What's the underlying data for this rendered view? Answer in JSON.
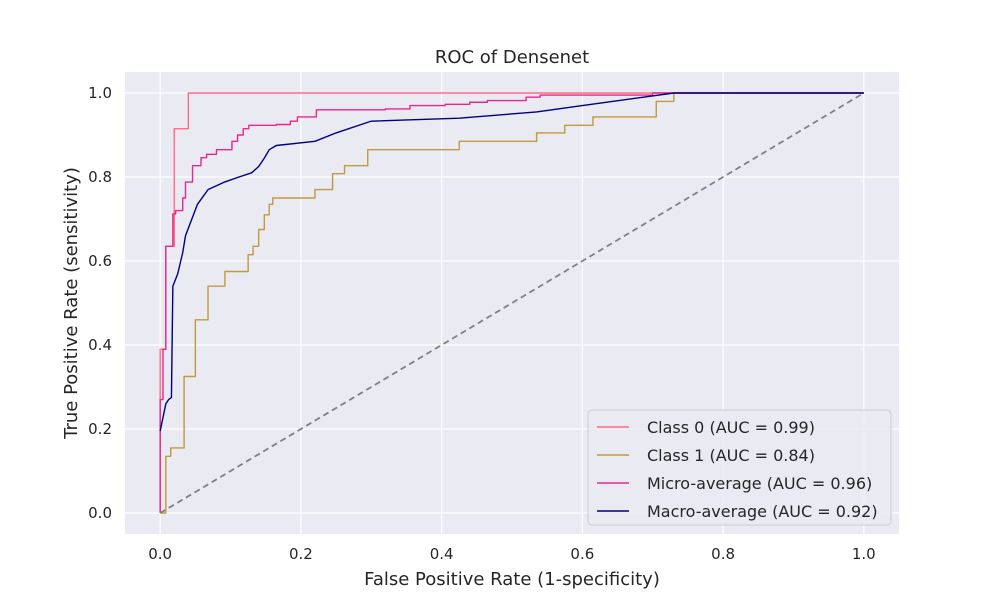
{
  "chart_data": {
    "type": "line",
    "title": "ROC of Densenet",
    "xlabel": "False Positive Rate (1-specificity)",
    "ylabel": "True Positive Rate (sensitivity)",
    "xlim": [
      -0.05,
      1.05
    ],
    "ylim": [
      -0.05,
      1.05
    ],
    "xticks": [
      0.0,
      0.2,
      0.4,
      0.6,
      0.8,
      1.0
    ],
    "xtick_labels": [
      "0.0",
      "0.2",
      "0.4",
      "0.6",
      "0.8",
      "1.0"
    ],
    "yticks": [
      0.0,
      0.2,
      0.4,
      0.6,
      0.8,
      1.0
    ],
    "ytick_labels": [
      "0.0",
      "0.2",
      "0.4",
      "0.6",
      "0.8",
      "1.0"
    ],
    "grid": true,
    "legend_position": "lower-right",
    "background_color": "#eaeaf2",
    "series": [
      {
        "name": "Class 0 (AUC = 0.99)",
        "color": "#ff6b81",
        "step": true,
        "points": [
          [
            0.0,
            0.0
          ],
          [
            0.0,
            0.39
          ],
          [
            0.008,
            0.39
          ],
          [
            0.008,
            0.635
          ],
          [
            0.02,
            0.635
          ],
          [
            0.02,
            0.915
          ],
          [
            0.04,
            0.915
          ],
          [
            0.04,
            1.0
          ],
          [
            1.0,
            1.0
          ]
        ]
      },
      {
        "name": "Class 1 (AUC = 0.84)",
        "color": "#c19a3d",
        "step": true,
        "points": [
          [
            0.0,
            0.0
          ],
          [
            0.008,
            0.0
          ],
          [
            0.008,
            0.135
          ],
          [
            0.015,
            0.135
          ],
          [
            0.015,
            0.155
          ],
          [
            0.034,
            0.155
          ],
          [
            0.034,
            0.325
          ],
          [
            0.05,
            0.325
          ],
          [
            0.05,
            0.46
          ],
          [
            0.068,
            0.46
          ],
          [
            0.068,
            0.54
          ],
          [
            0.092,
            0.54
          ],
          [
            0.092,
            0.575
          ],
          [
            0.125,
            0.575
          ],
          [
            0.125,
            0.615
          ],
          [
            0.132,
            0.615
          ],
          [
            0.132,
            0.635
          ],
          [
            0.14,
            0.635
          ],
          [
            0.14,
            0.675
          ],
          [
            0.148,
            0.675
          ],
          [
            0.148,
            0.71
          ],
          [
            0.155,
            0.71
          ],
          [
            0.155,
            0.735
          ],
          [
            0.16,
            0.735
          ],
          [
            0.16,
            0.75
          ],
          [
            0.22,
            0.75
          ],
          [
            0.22,
            0.77
          ],
          [
            0.245,
            0.77
          ],
          [
            0.245,
            0.808
          ],
          [
            0.262,
            0.808
          ],
          [
            0.262,
            0.827
          ],
          [
            0.295,
            0.827
          ],
          [
            0.295,
            0.865
          ],
          [
            0.425,
            0.865
          ],
          [
            0.425,
            0.885
          ],
          [
            0.535,
            0.885
          ],
          [
            0.535,
            0.905
          ],
          [
            0.575,
            0.905
          ],
          [
            0.575,
            0.923
          ],
          [
            0.615,
            0.923
          ],
          [
            0.615,
            0.943
          ],
          [
            0.705,
            0.943
          ],
          [
            0.705,
            0.98
          ],
          [
            0.73,
            0.98
          ],
          [
            0.73,
            1.0
          ],
          [
            1.0,
            1.0
          ]
        ]
      },
      {
        "name": "Micro-average (AUC = 0.96)",
        "color": "#e8278f",
        "step": true,
        "points": [
          [
            0.0,
            0.0
          ],
          [
            0.0,
            0.27
          ],
          [
            0.004,
            0.27
          ],
          [
            0.004,
            0.39
          ],
          [
            0.008,
            0.39
          ],
          [
            0.008,
            0.635
          ],
          [
            0.018,
            0.635
          ],
          [
            0.018,
            0.712
          ],
          [
            0.022,
            0.712
          ],
          [
            0.022,
            0.72
          ],
          [
            0.032,
            0.72
          ],
          [
            0.032,
            0.75
          ],
          [
            0.036,
            0.75
          ],
          [
            0.036,
            0.788
          ],
          [
            0.046,
            0.788
          ],
          [
            0.046,
            0.827
          ],
          [
            0.058,
            0.827
          ],
          [
            0.058,
            0.846
          ],
          [
            0.066,
            0.846
          ],
          [
            0.066,
            0.854
          ],
          [
            0.08,
            0.854
          ],
          [
            0.08,
            0.865
          ],
          [
            0.102,
            0.865
          ],
          [
            0.102,
            0.885
          ],
          [
            0.11,
            0.885
          ],
          [
            0.11,
            0.9
          ],
          [
            0.118,
            0.9
          ],
          [
            0.118,
            0.915
          ],
          [
            0.126,
            0.915
          ],
          [
            0.126,
            0.923
          ],
          [
            0.165,
            0.923
          ],
          [
            0.165,
            0.925
          ],
          [
            0.185,
            0.925
          ],
          [
            0.185,
            0.933
          ],
          [
            0.195,
            0.933
          ],
          [
            0.195,
            0.943
          ],
          [
            0.222,
            0.943
          ],
          [
            0.222,
            0.96
          ],
          [
            0.32,
            0.96
          ],
          [
            0.32,
            0.962
          ],
          [
            0.355,
            0.962
          ],
          [
            0.355,
            0.97
          ],
          [
            0.405,
            0.97
          ],
          [
            0.405,
            0.973
          ],
          [
            0.44,
            0.973
          ],
          [
            0.44,
            0.978
          ],
          [
            0.465,
            0.978
          ],
          [
            0.465,
            0.982
          ],
          [
            0.52,
            0.982
          ],
          [
            0.52,
            0.99
          ],
          [
            0.54,
            0.99
          ],
          [
            0.54,
            0.995
          ],
          [
            0.7,
            0.995
          ],
          [
            0.7,
            1.0
          ],
          [
            1.0,
            1.0
          ]
        ]
      },
      {
        "name": "Macro-average (AUC = 0.92)",
        "color": "#000080",
        "step": false,
        "points": [
          [
            0.0,
            0.195
          ],
          [
            0.008,
            0.26
          ],
          [
            0.012,
            0.27
          ],
          [
            0.016,
            0.275
          ],
          [
            0.018,
            0.54
          ],
          [
            0.025,
            0.57
          ],
          [
            0.032,
            0.62
          ],
          [
            0.036,
            0.66
          ],
          [
            0.045,
            0.7
          ],
          [
            0.053,
            0.735
          ],
          [
            0.068,
            0.77
          ],
          [
            0.09,
            0.787
          ],
          [
            0.112,
            0.8
          ],
          [
            0.13,
            0.81
          ],
          [
            0.14,
            0.825
          ],
          [
            0.148,
            0.845
          ],
          [
            0.155,
            0.865
          ],
          [
            0.165,
            0.875
          ],
          [
            0.22,
            0.885
          ],
          [
            0.25,
            0.905
          ],
          [
            0.3,
            0.933
          ],
          [
            0.425,
            0.94
          ],
          [
            0.535,
            0.955
          ],
          [
            0.6,
            0.97
          ],
          [
            0.73,
            1.0
          ],
          [
            1.0,
            1.0
          ]
        ]
      },
      {
        "name": "",
        "color": "#808080",
        "dashed": true,
        "step": false,
        "points": [
          [
            0.0,
            0.0
          ],
          [
            1.0,
            1.0
          ]
        ]
      }
    ]
  }
}
